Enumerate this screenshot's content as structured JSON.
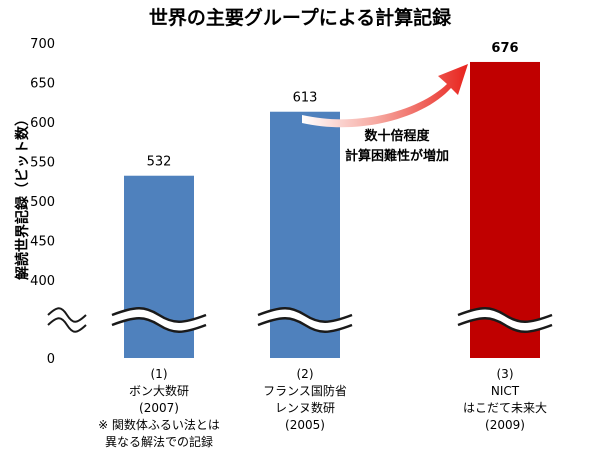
{
  "chart_data": {
    "type": "bar",
    "title": "世界の主要グループによる計算記録",
    "ylabel": "解読世界記録（ビット数）",
    "xlabel": "",
    "ylim": [
      0,
      700
    ],
    "axis_break": {
      "from": 0,
      "to": 400
    },
    "yticks": [
      {
        "value": 700,
        "label": "700"
      },
      {
        "value": 650,
        "label": "650"
      },
      {
        "value": 600,
        "label": "600"
      },
      {
        "value": 550,
        "label": "550"
      },
      {
        "value": 500,
        "label": "500"
      },
      {
        "value": 450,
        "label": "450"
      },
      {
        "value": 400,
        "label": "400"
      },
      {
        "value": 0,
        "label": "0"
      }
    ],
    "grid": false,
    "legend": "none",
    "bars": [
      {
        "index": "(1)",
        "value": 532,
        "value_label": "532",
        "color": "#4f81bd",
        "lines": [
          "ボン大数研",
          "(2007)",
          "※ 関数体ふるい法とは",
          "異なる解法での記録"
        ]
      },
      {
        "index": "(2)",
        "value": 613,
        "value_label": "613",
        "color": "#4f81bd",
        "lines": [
          "フランス国防省",
          "レンヌ数研",
          "(2005)"
        ]
      },
      {
        "index": "(3)",
        "value": 676,
        "value_label": "676",
        "color": "#c00000",
        "lines": [
          "NICT",
          "はこだて未来大",
          "(2009)"
        ]
      }
    ],
    "annotation": {
      "lines": [
        "数十倍程度",
        "計算困難性が増加"
      ],
      "arrow_color": "#e8231d"
    }
  }
}
